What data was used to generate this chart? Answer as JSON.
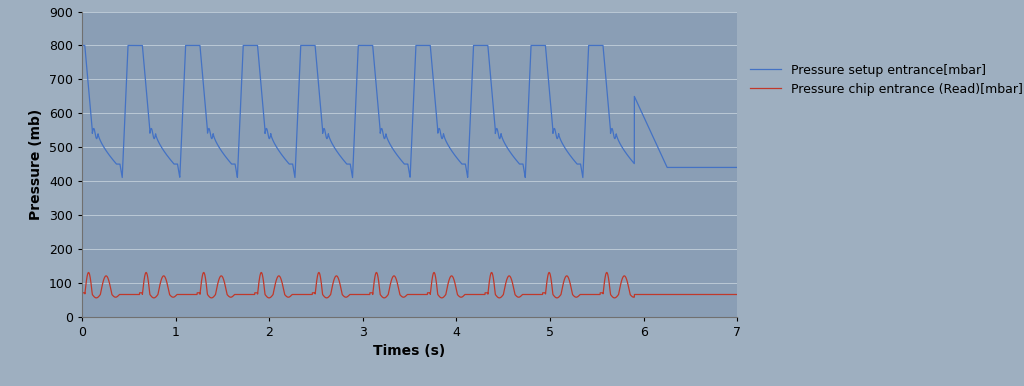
{
  "title": "",
  "xlabel": "Times (s)",
  "ylabel": "Pressure (mb)",
  "xlim": [
    0,
    7
  ],
  "ylim": [
    0,
    900
  ],
  "yticks": [
    0,
    100,
    200,
    300,
    400,
    500,
    600,
    700,
    800,
    900
  ],
  "xticks": [
    0,
    1,
    2,
    3,
    4,
    5,
    6,
    7
  ],
  "background_color": "#9eafc0",
  "plot_bg_color": "#8a9eb5",
  "grid_color": "#c8d4de",
  "blue_color": "#4472c4",
  "red_color": "#c0392b",
  "legend_entries": [
    "Pressure setup entrance[mbar]",
    "Pressure chip entrance (Read)[mbar]"
  ],
  "legend_fontsize": 9,
  "axis_fontsize": 10,
  "tick_fontsize": 9,
  "blue_period": 0.615,
  "blue_peak": 800,
  "blue_min": 410,
  "blue_plateau": 450,
  "blue_step": 550,
  "red_base": 65,
  "red_peak1": 130,
  "red_peak2": 120
}
